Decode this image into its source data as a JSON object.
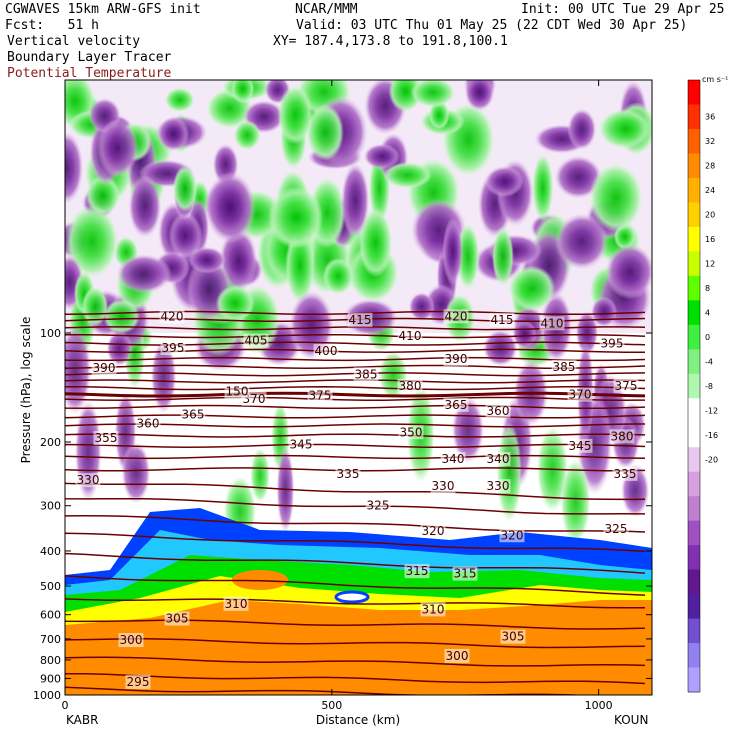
{
  "header": {
    "model": "CGWAVES 15km ARW-GFS init",
    "org": "NCAR/MMM",
    "init": "Init: 00 UTC Tue 29 Apr 25",
    "fcst": "Fcst:   51 h",
    "valid": "Valid: 03 UTC Thu 01 May 25 (22 CDT Wed 30 Apr 25)",
    "field1": "Vertical velocity",
    "xy": "XY= 187.4,173.8 to 191.8,100.1",
    "field2": "Boundary Layer Tracer",
    "field3": "Potential Temperature"
  },
  "colors": {
    "theta_line": "#6b0000",
    "bl_yellow": "#ffff00",
    "bl_orange": "#ff8c00",
    "bl_green": "#00e000",
    "bl_blue": "#0040ff",
    "w_green": "#22dd22",
    "w_purple": "#7a1fa2",
    "w_lilac": "#e0b0e8"
  },
  "chart_data": {
    "type": "heatmap",
    "xlabel": "Distance (km)",
    "ylabel": "Pressure (hPa), log scale",
    "x_ticks": [
      0,
      500,
      1000
    ],
    "x_range": [
      0,
      1100
    ],
    "y_ticks": [
      100,
      200,
      300,
      400,
      500,
      600,
      700,
      800,
      900,
      1000
    ],
    "y_range": [
      1000,
      20
    ],
    "y_scale": "log",
    "endpoints": {
      "left": "KABR",
      "right": "KOUN"
    },
    "colorbar": {
      "units": "cm s⁻¹",
      "labels": [
        "36",
        "32",
        "28",
        "24",
        "20",
        "16",
        "12",
        "8",
        "4",
        "0",
        "-4",
        "-8",
        "-12",
        "-16",
        "-20"
      ],
      "colors": [
        "#ff0000",
        "#ff3000",
        "#ff6000",
        "#ff8c00",
        "#ffb000",
        "#ffd000",
        "#ffff00",
        "#c8ff00",
        "#60ff00",
        "#00e000",
        "#40f040",
        "#80f080",
        "#b0f8b0",
        "#ffffff",
        "#ffffff",
        "#e8c8ee",
        "#d8a0e0",
        "#c080d0",
        "#a050c0",
        "#8030b0",
        "#601890",
        "#5020a0",
        "#7050d0",
        "#9080f0",
        "#b0a0ff"
      ]
    },
    "theta_labels": [
      {
        "v": "420",
        "x": 172,
        "p": 90
      },
      {
        "v": "415",
        "x": 360,
        "p": 92
      },
      {
        "v": "420",
        "x": 456,
        "p": 90
      },
      {
        "v": "415",
        "x": 502,
        "p": 92
      },
      {
        "v": "410",
        "x": 410,
        "p": 102
      },
      {
        "v": "410",
        "x": 552,
        "p": 94
      },
      {
        "v": "405",
        "x": 256,
        "p": 105
      },
      {
        "v": "400",
        "x": 326,
        "p": 112
      },
      {
        "v": "395",
        "x": 173,
        "p": 110
      },
      {
        "v": "395",
        "x": 612,
        "p": 107
      },
      {
        "v": "390",
        "x": 104,
        "p": 125
      },
      {
        "v": "390",
        "x": 456,
        "p": 118
      },
      {
        "v": "385",
        "x": 366,
        "p": 130
      },
      {
        "v": "385",
        "x": 564,
        "p": 124
      },
      {
        "v": "380",
        "x": 410,
        "p": 140
      },
      {
        "v": "375",
        "x": 320,
        "p": 149
      },
      {
        "v": "375",
        "x": 626,
        "p": 140
      },
      {
        "v": "370",
        "x": 254,
        "p": 152
      },
      {
        "v": "370",
        "x": 580,
        "p": 148
      },
      {
        "v": "365",
        "x": 193,
        "p": 168
      },
      {
        "v": "365",
        "x": 456,
        "p": 158
      },
      {
        "v": "360",
        "x": 148,
        "p": 178
      },
      {
        "v": "360",
        "x": 498,
        "p": 164
      },
      {
        "v": "355",
        "x": 106,
        "p": 195
      },
      {
        "v": "350",
        "x": 411,
        "p": 188
      },
      {
        "v": "345",
        "x": 301,
        "p": 203
      },
      {
        "v": "345",
        "x": 580,
        "p": 205
      },
      {
        "v": "380",
        "x": 622,
        "p": 193
      },
      {
        "v": "340",
        "x": 453,
        "p": 223
      },
      {
        "v": "340",
        "x": 498,
        "p": 223
      },
      {
        "v": "335",
        "x": 348,
        "p": 245
      },
      {
        "v": "335",
        "x": 625,
        "p": 245
      },
      {
        "v": "330",
        "x": 88,
        "p": 255
      },
      {
        "v": "330",
        "x": 443,
        "p": 265
      },
      {
        "v": "330",
        "x": 498,
        "p": 265
      },
      {
        "v": "325",
        "x": 378,
        "p": 300
      },
      {
        "v": "325",
        "x": 616,
        "p": 348
      },
      {
        "v": "320",
        "x": 433,
        "p": 352
      },
      {
        "v": "320",
        "x": 512,
        "p": 362
      },
      {
        "v": "315",
        "x": 417,
        "p": 455
      },
      {
        "v": "315",
        "x": 465,
        "p": 462
      },
      {
        "v": "310",
        "x": 236,
        "p": 560
      },
      {
        "v": "310",
        "x": 433,
        "p": 580
      },
      {
        "v": "305",
        "x": 177,
        "p": 615
      },
      {
        "v": "305",
        "x": 513,
        "p": 690
      },
      {
        "v": "300",
        "x": 131,
        "p": 705
      },
      {
        "v": "300",
        "x": 457,
        "p": 780
      },
      {
        "v": "295",
        "x": 138,
        "p": 920
      }
    ],
    "tropopause_label": {
      "v": "150",
      "x": 237,
      "p": 145
    }
  }
}
